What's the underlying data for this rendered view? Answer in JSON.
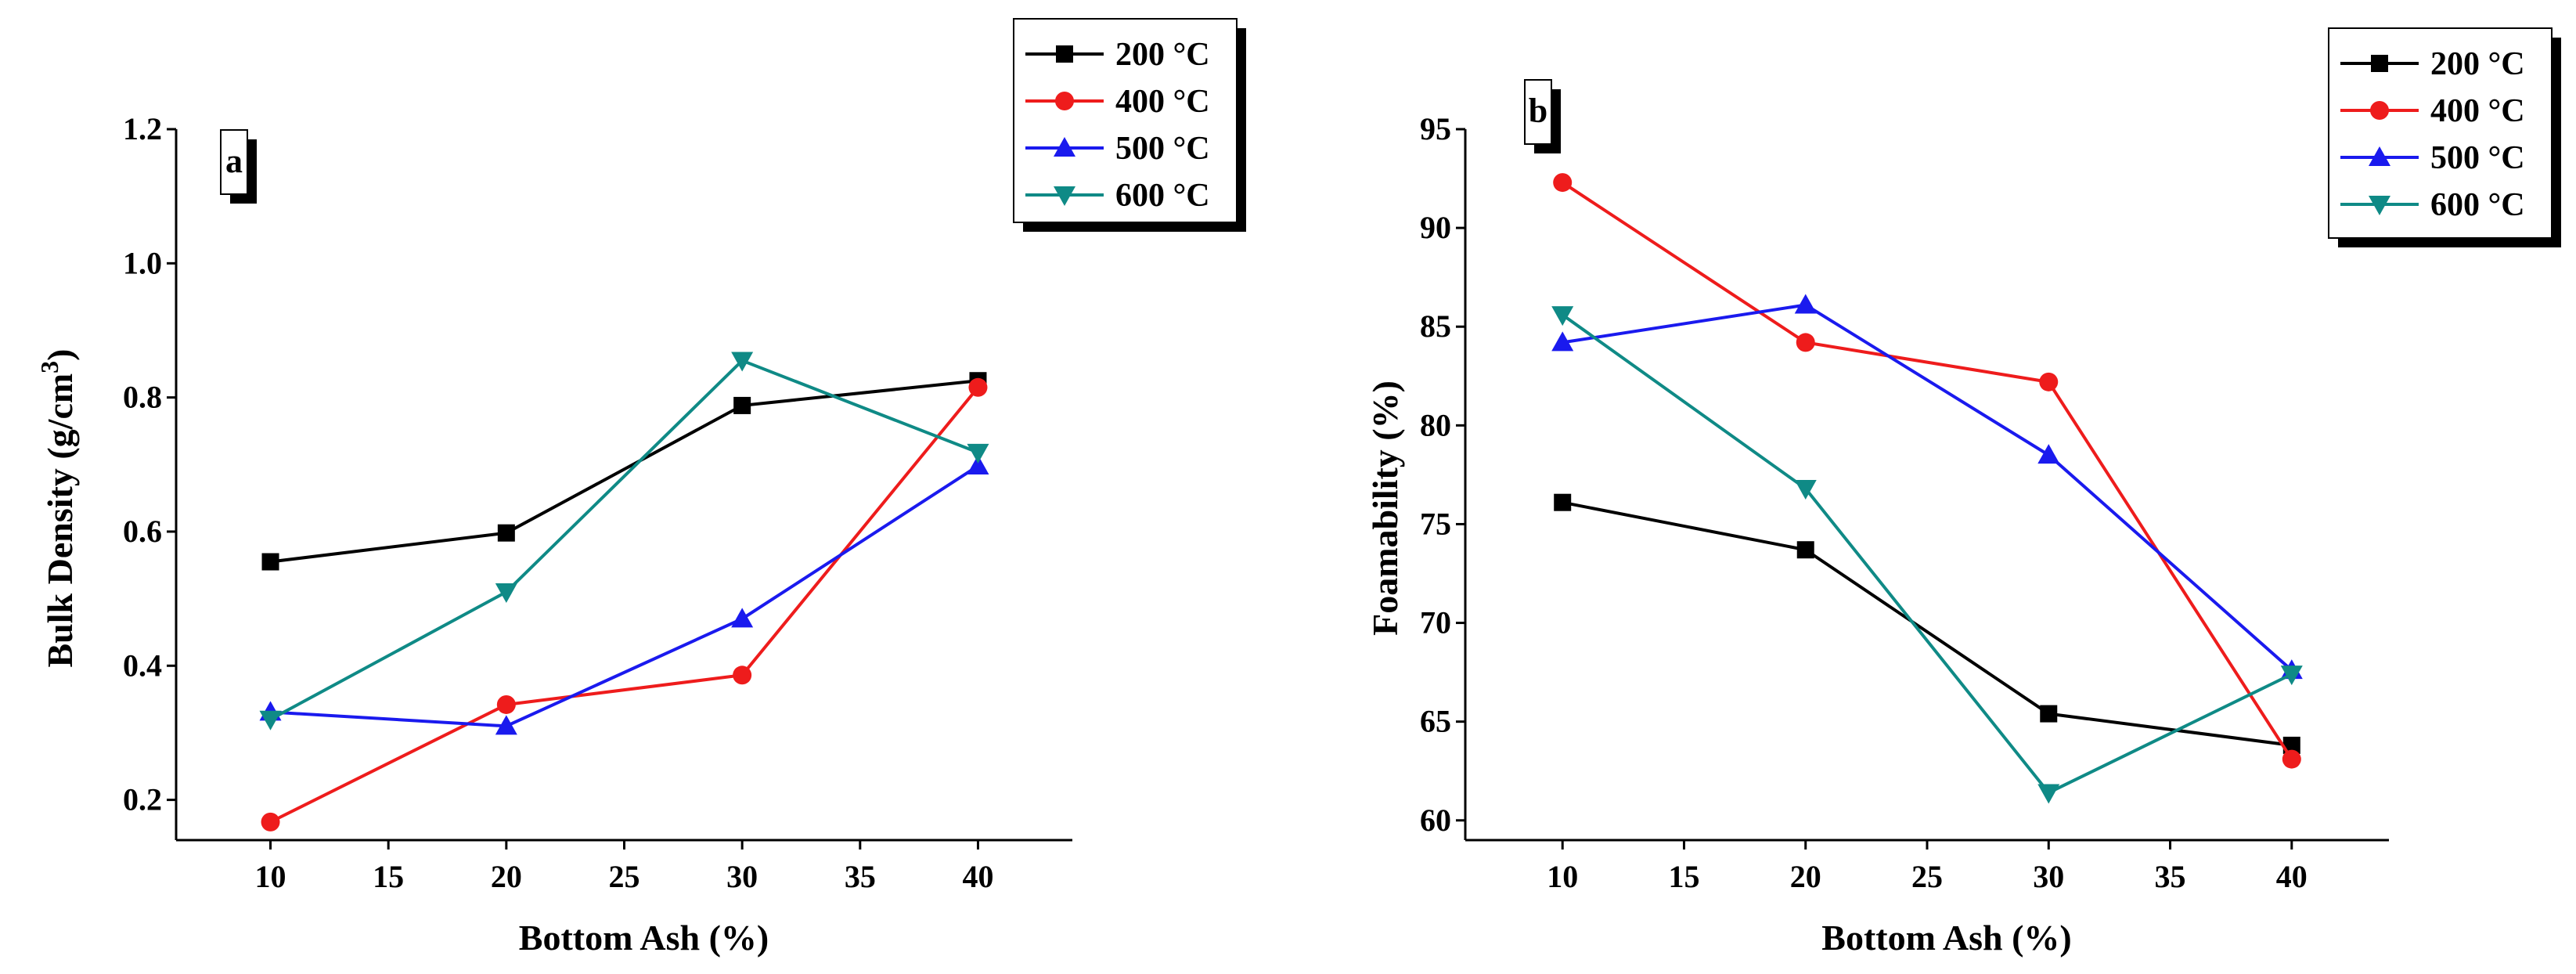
{
  "chart_data": [
    {
      "panel": "a",
      "type": "line",
      "xlabel": "Bottom Ash (%)",
      "ylabel_main": "Bulk Density (g/cm",
      "ylabel_sup": "3",
      "ylabel_close": ")",
      "xlim": [
        6,
        44
      ],
      "ylim": [
        0.14,
        1.2
      ],
      "xticks": [
        10,
        15,
        20,
        25,
        30,
        35,
        40
      ],
      "yticks": [
        "0.2",
        "0.4",
        "0.6",
        "0.8",
        "1.0",
        "1.2"
      ],
      "x": [
        10,
        20,
        30,
        40
      ],
      "series": [
        {
          "name": "200 °C",
          "color": "#000000",
          "marker": "square",
          "values": [
            0.555,
            0.598,
            0.788,
            0.825
          ]
        },
        {
          "name": "400 °C",
          "color": "#ee1c1c",
          "marker": "circle",
          "values": [
            0.167,
            0.342,
            0.386,
            0.815
          ]
        },
        {
          "name": "500 °C",
          "color": "#1a1aee",
          "marker": "triangle-up",
          "values": [
            0.331,
            0.31,
            0.47,
            0.698
          ]
        },
        {
          "name": "600 °C",
          "color": "#0f8a86",
          "marker": "triangle-down",
          "values": [
            0.32,
            0.51,
            0.855,
            0.718
          ]
        }
      ]
    },
    {
      "panel": "b",
      "type": "line",
      "xlabel": "Bottom Ash (%)",
      "ylabel_main": "Foamability (%)",
      "ylabel_sup": "",
      "ylabel_close": "",
      "xlim": [
        6,
        44
      ],
      "ylim": [
        59,
        95
      ],
      "xticks": [
        10,
        15,
        20,
        25,
        30,
        35,
        40
      ],
      "yticks": [
        "60",
        "65",
        "70",
        "75",
        "80",
        "85",
        "90",
        "95"
      ],
      "x": [
        10,
        20,
        30,
        40
      ],
      "series": [
        {
          "name": "200 °C",
          "color": "#000000",
          "marker": "square",
          "values": [
            76.1,
            73.7,
            65.4,
            63.8
          ]
        },
        {
          "name": "400 °C",
          "color": "#ee1c1c",
          "marker": "circle",
          "values": [
            92.3,
            84.2,
            82.2,
            63.1
          ]
        },
        {
          "name": "500 °C",
          "color": "#1a1aee",
          "marker": "triangle-up",
          "values": [
            84.2,
            86.1,
            78.5,
            67.6
          ]
        },
        {
          "name": "600 °C",
          "color": "#0f8a86",
          "marker": "triangle-down",
          "values": [
            85.6,
            76.8,
            61.4,
            67.4
          ]
        }
      ]
    }
  ]
}
